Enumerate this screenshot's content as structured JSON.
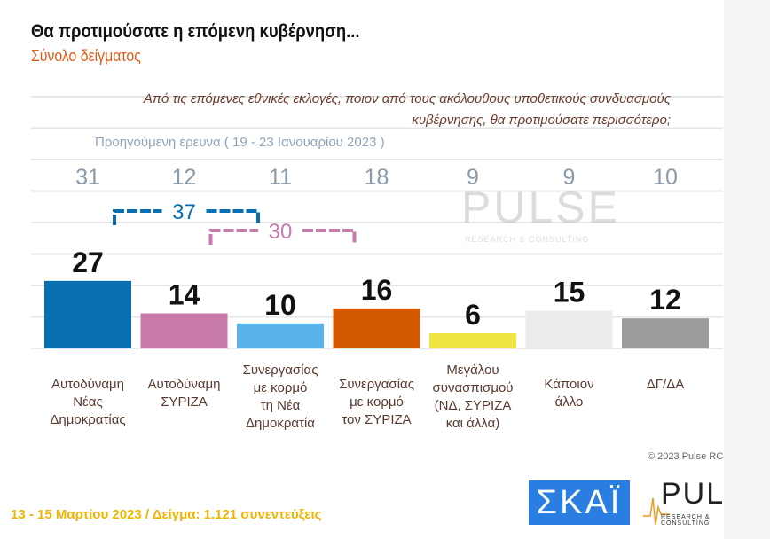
{
  "header": {
    "title": "Θα προτιμούσατε η επόμενη κυβέρνηση...",
    "subtitle": "Σύνολο δείγματος",
    "question": "Από τις επόμενες εθνικές εκλογές, ποιον από τους ακόλουθους υποθετικούς συνδυασμούς κυβέρνησης, θα προτιμούσατε περισσότερο;",
    "previous_label": "Προηγούμενη έρευνα  ( 19 - 23 Ιανουαρίου  2023 )"
  },
  "chart_data": {
    "type": "bar",
    "categories": [
      [
        "Αυτοδύναμη",
        "Νέας",
        "Δημοκρατίας"
      ],
      [
        "Αυτοδύναμη",
        "ΣΥΡΙΖΑ"
      ],
      [
        "Συνεργασίας",
        "με κορμό",
        "τη Νέα",
        "Δημοκρατία"
      ],
      [
        "Συνεργασίας",
        "με κορμό",
        "τον ΣΥΡΙΖΑ"
      ],
      [
        "Μεγάλου",
        "συνασπισμού",
        "(ΝΔ, ΣΥΡΙΖΑ",
        "και άλλα)"
      ],
      [
        "Κάποιον",
        "άλλο"
      ],
      [
        "ΔΓ/ΔΑ"
      ]
    ],
    "values": [
      27,
      14,
      10,
      16,
      6,
      15,
      12
    ],
    "previous_values": [
      31,
      12,
      11,
      18,
      9,
      9,
      10
    ],
    "colors": [
      "#0a6fb0",
      "#c87aab",
      "#5ab3e8",
      "#d45a00",
      "#f0e442",
      "#ececec",
      "#9b9b9b"
    ],
    "groupings": [
      {
        "label": "37",
        "categories": [
          0,
          2
        ],
        "color": "#0a6fb0"
      },
      {
        "label": "30",
        "categories": [
          1,
          3
        ],
        "color": "#c87aab"
      }
    ],
    "grid": true
  },
  "footer": {
    "date_sample": "13 - 15  Μαρτίου  2023  /  Δείγμα:  1.121 συνεντεύξεις",
    "copyright": "© 2023 Pulse RC"
  },
  "logos": {
    "skai": "ΣΚΑΪ",
    "pulse": "PULSE",
    "pulse_sub": "RESEARCH & CONSULTING"
  }
}
